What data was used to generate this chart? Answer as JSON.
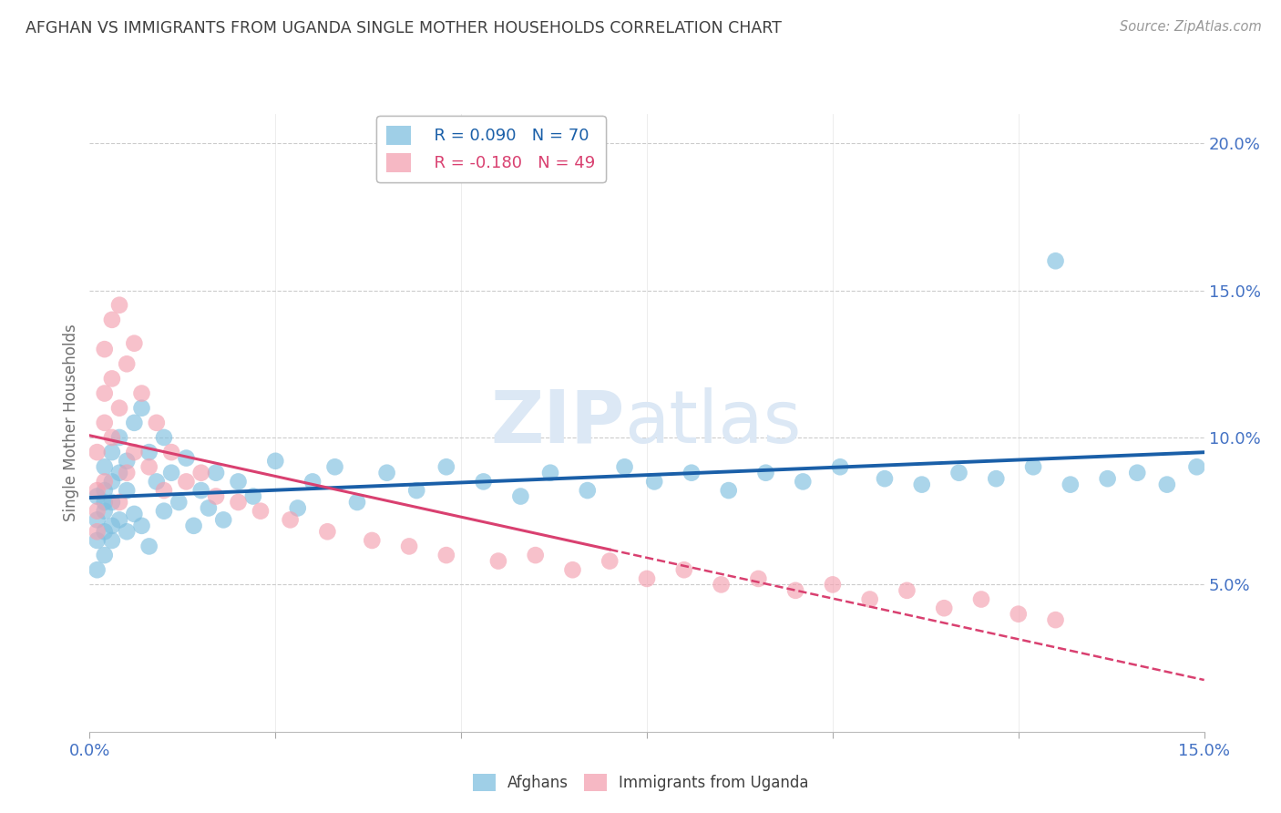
{
  "title": "AFGHAN VS IMMIGRANTS FROM UGANDA SINGLE MOTHER HOUSEHOLDS CORRELATION CHART",
  "source": "Source: ZipAtlas.com",
  "ylabel": "Single Mother Households",
  "r_afghan": 0.09,
  "n_afghan": 70,
  "r_uganda": -0.18,
  "n_uganda": 49,
  "afghan_color": "#7fbfdf",
  "uganda_color": "#f4a0b0",
  "afghan_line_color": "#1a5fa8",
  "uganda_line_color": "#d94070",
  "watermark_color": "#dce8f5",
  "xlim": [
    0.0,
    0.15
  ],
  "ylim": [
    0.0,
    0.21
  ],
  "yticks": [
    0.05,
    0.1,
    0.15,
    0.2
  ],
  "background_color": "#ffffff",
  "grid_color": "#cccccc",
  "tick_label_color": "#4472c4",
  "title_color": "#404040",
  "axis_label_color": "#707070",
  "afghan_scatter_x": [
    0.001,
    0.001,
    0.001,
    0.001,
    0.002,
    0.002,
    0.002,
    0.002,
    0.002,
    0.002,
    0.003,
    0.003,
    0.003,
    0.003,
    0.003,
    0.004,
    0.004,
    0.004,
    0.005,
    0.005,
    0.005,
    0.006,
    0.006,
    0.007,
    0.007,
    0.008,
    0.008,
    0.009,
    0.01,
    0.01,
    0.011,
    0.012,
    0.013,
    0.014,
    0.015,
    0.016,
    0.017,
    0.018,
    0.02,
    0.022,
    0.025,
    0.028,
    0.03,
    0.033,
    0.036,
    0.04,
    0.044,
    0.048,
    0.053,
    0.058,
    0.062,
    0.067,
    0.072,
    0.076,
    0.081,
    0.086,
    0.091,
    0.096,
    0.101,
    0.107,
    0.112,
    0.117,
    0.122,
    0.127,
    0.132,
    0.137,
    0.141,
    0.145,
    0.149,
    0.13
  ],
  "afghan_scatter_y": [
    0.072,
    0.08,
    0.065,
    0.055,
    0.082,
    0.075,
    0.068,
    0.06,
    0.09,
    0.078,
    0.085,
    0.07,
    0.078,
    0.095,
    0.065,
    0.088,
    0.072,
    0.1,
    0.082,
    0.068,
    0.092,
    0.105,
    0.074,
    0.11,
    0.07,
    0.095,
    0.063,
    0.085,
    0.1,
    0.075,
    0.088,
    0.078,
    0.093,
    0.07,
    0.082,
    0.076,
    0.088,
    0.072,
    0.085,
    0.08,
    0.092,
    0.076,
    0.085,
    0.09,
    0.078,
    0.088,
    0.082,
    0.09,
    0.085,
    0.08,
    0.088,
    0.082,
    0.09,
    0.085,
    0.088,
    0.082,
    0.088,
    0.085,
    0.09,
    0.086,
    0.084,
    0.088,
    0.086,
    0.09,
    0.084,
    0.086,
    0.088,
    0.084,
    0.09,
    0.16
  ],
  "uganda_scatter_x": [
    0.001,
    0.001,
    0.001,
    0.001,
    0.002,
    0.002,
    0.002,
    0.002,
    0.003,
    0.003,
    0.003,
    0.004,
    0.004,
    0.004,
    0.005,
    0.005,
    0.006,
    0.006,
    0.007,
    0.008,
    0.009,
    0.01,
    0.011,
    0.013,
    0.015,
    0.017,
    0.02,
    0.023,
    0.027,
    0.032,
    0.038,
    0.043,
    0.048,
    0.055,
    0.06,
    0.065,
    0.07,
    0.075,
    0.08,
    0.085,
    0.09,
    0.095,
    0.1,
    0.105,
    0.11,
    0.115,
    0.12,
    0.125,
    0.13
  ],
  "uganda_scatter_y": [
    0.095,
    0.082,
    0.075,
    0.068,
    0.13,
    0.115,
    0.105,
    0.085,
    0.14,
    0.12,
    0.1,
    0.145,
    0.11,
    0.078,
    0.125,
    0.088,
    0.132,
    0.095,
    0.115,
    0.09,
    0.105,
    0.082,
    0.095,
    0.085,
    0.088,
    0.08,
    0.078,
    0.075,
    0.072,
    0.068,
    0.065,
    0.063,
    0.06,
    0.058,
    0.06,
    0.055,
    0.058,
    0.052,
    0.055,
    0.05,
    0.052,
    0.048,
    0.05,
    0.045,
    0.048,
    0.042,
    0.045,
    0.04,
    0.038
  ]
}
